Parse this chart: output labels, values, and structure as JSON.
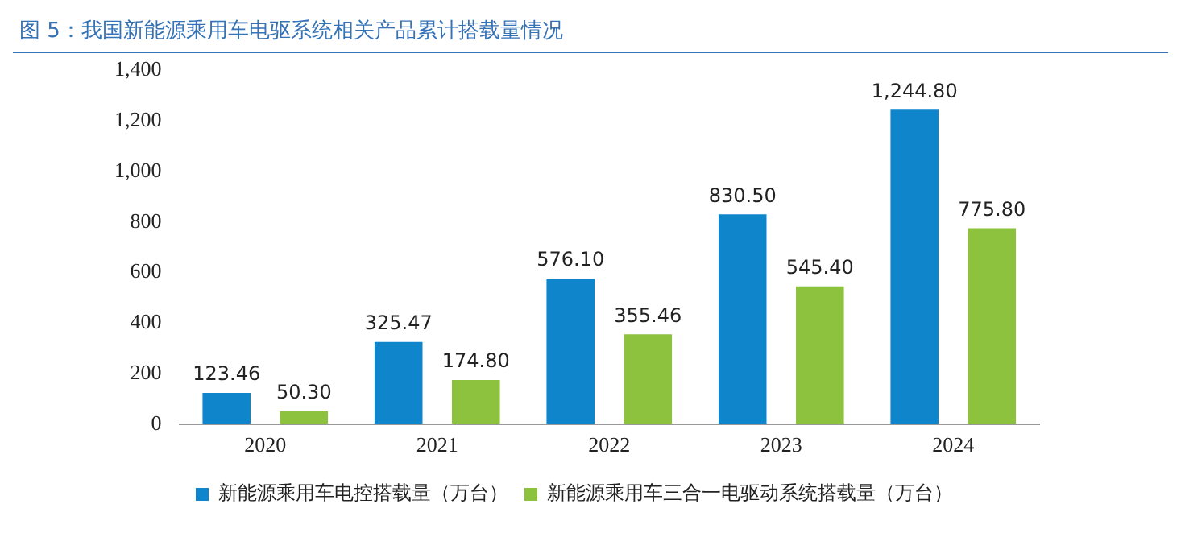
{
  "chart_data": {
    "type": "bar",
    "title": "图 5：我国新能源乘用车电驱系统相关产品累计搭载量情况",
    "categories": [
      "2020",
      "2021",
      "2022",
      "2023",
      "2024"
    ],
    "series": [
      {
        "name": "新能源乘用车电控搭载量（万台）",
        "color": "#0f86cc",
        "values": [
          123.46,
          325.47,
          576.1,
          830.5,
          1244.8
        ],
        "value_labels": [
          "123.46",
          "325.47",
          "576.10",
          "830.50",
          "1,244.80"
        ]
      },
      {
        "name": "新能源乘用车三合一电驱动系统搭载量（万台）",
        "color": "#8dc23f",
        "values": [
          50.3,
          174.8,
          355.46,
          545.4,
          775.8
        ],
        "value_labels": [
          "50.30",
          "174.80",
          "355.46",
          "545.40",
          "775.80"
        ]
      }
    ],
    "ylim": [
      0,
      1400
    ],
    "yticks": [
      0,
      200,
      400,
      600,
      800,
      {
        "value": 1000,
        "label": "1,000"
      },
      {
        "value": 1200,
        "label": "1,200"
      },
      {
        "value": 1400,
        "label": "1,400"
      }
    ],
    "grid": false,
    "legend": "bottom"
  }
}
